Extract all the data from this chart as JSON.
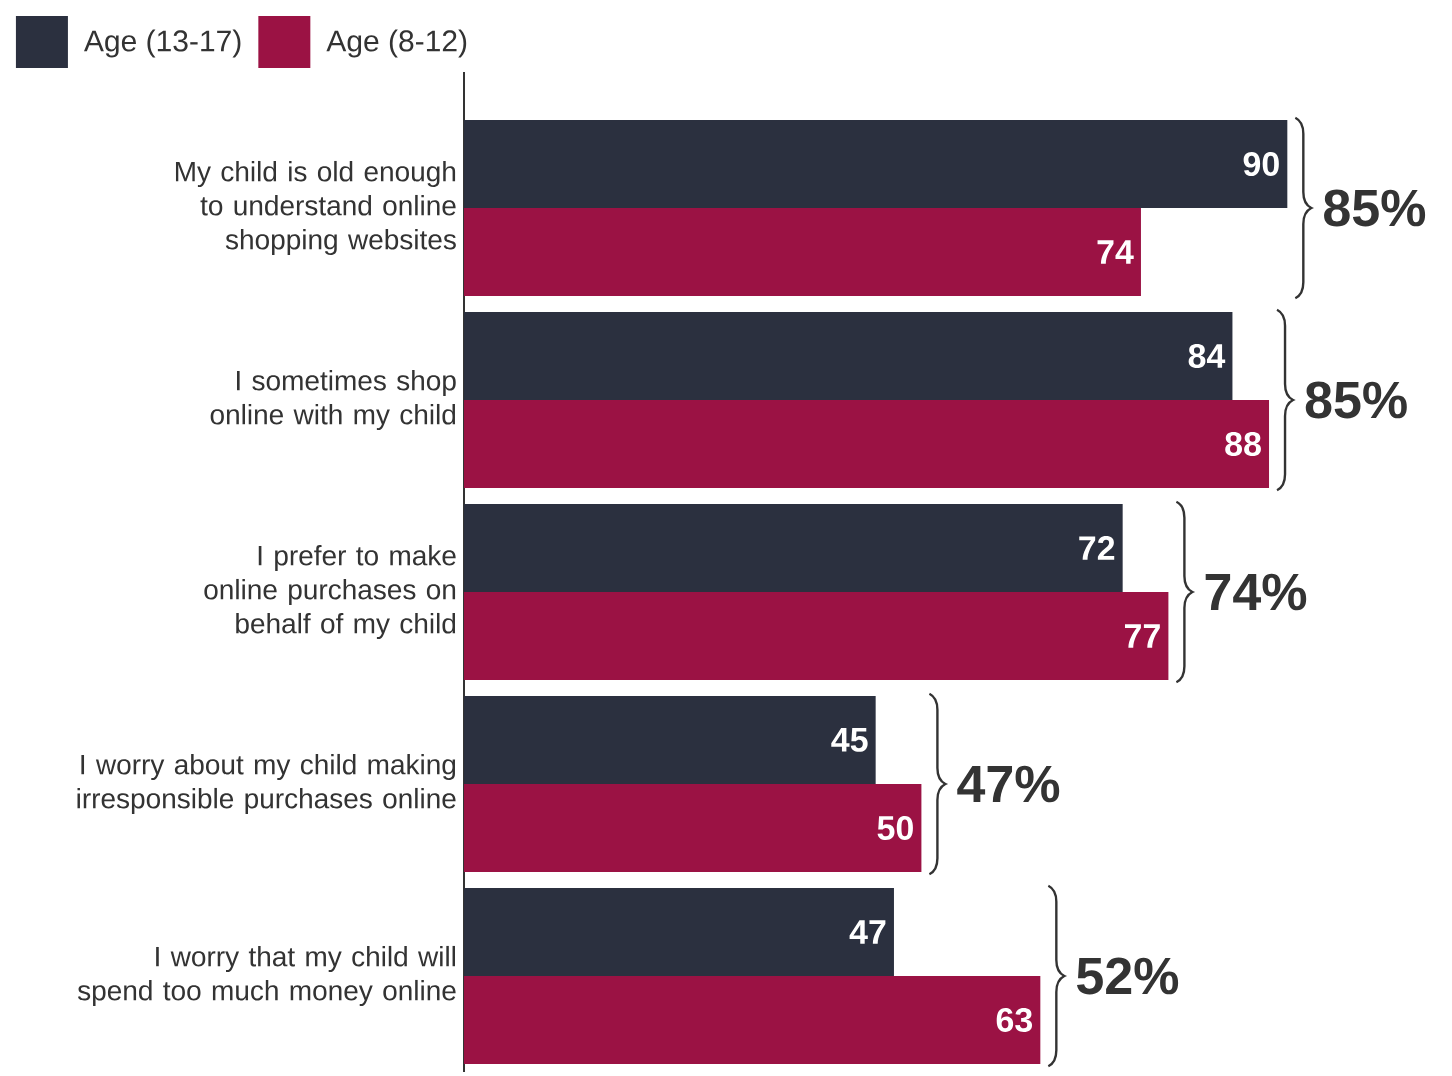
{
  "chart_data": {
    "type": "bar",
    "orientation": "horizontal",
    "categories": [
      "My child is old enough to understand online shopping websites",
      "I sometimes shop online with my child",
      "I prefer to make online purchases on behalf of my child",
      "I worry about my child making irresponsible purchases online",
      "I worry that my child will spend too much money online"
    ],
    "series": [
      {
        "name": "Age (13-17)",
        "color": "#2b303f",
        "values": [
          90,
          84,
          72,
          45,
          47
        ]
      },
      {
        "name": "Age (8-12)",
        "color": "#9b1244",
        "values": [
          74,
          88,
          77,
          50,
          63
        ]
      }
    ],
    "data_labels": true,
    "legend": "top left",
    "tick_labels": "y",
    "annotations": [
      "85%",
      "85%",
      "74%",
      "47%",
      "52%"
    ]
  }
}
